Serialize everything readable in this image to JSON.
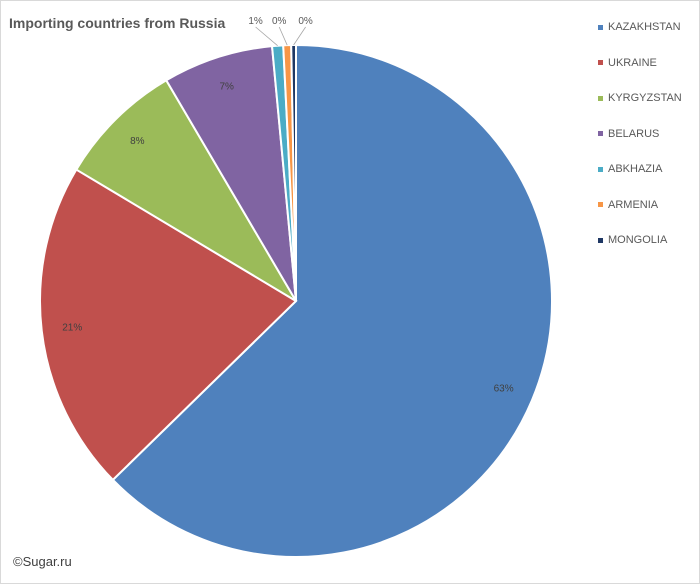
{
  "chart_data": {
    "type": "pie",
    "title": "Importing countries from Russia",
    "categories": [
      "KAZAKHSTAN",
      "UKRAINE",
      "KYRGYZSTAN",
      "BELARUS",
      "ABKHAZIA",
      "ARMENIA",
      "MONGOLIA"
    ],
    "values": [
      63.0,
      21.0,
      8.0,
      7.0,
      0.7,
      0.5,
      0.3
    ],
    "data_labels": [
      "63%",
      "21%",
      "8%",
      "7%",
      "1%",
      "0%",
      "0%"
    ],
    "colors": [
      "#4f81bd",
      "#c0504d",
      "#9bbb59",
      "#8064a2",
      "#4bacc6",
      "#f79646",
      "#1f3864"
    ],
    "legend_position": "right",
    "start_angle_deg": 0,
    "direction": "clockwise"
  },
  "footer": {
    "copyright": "©Sugar.ru"
  }
}
